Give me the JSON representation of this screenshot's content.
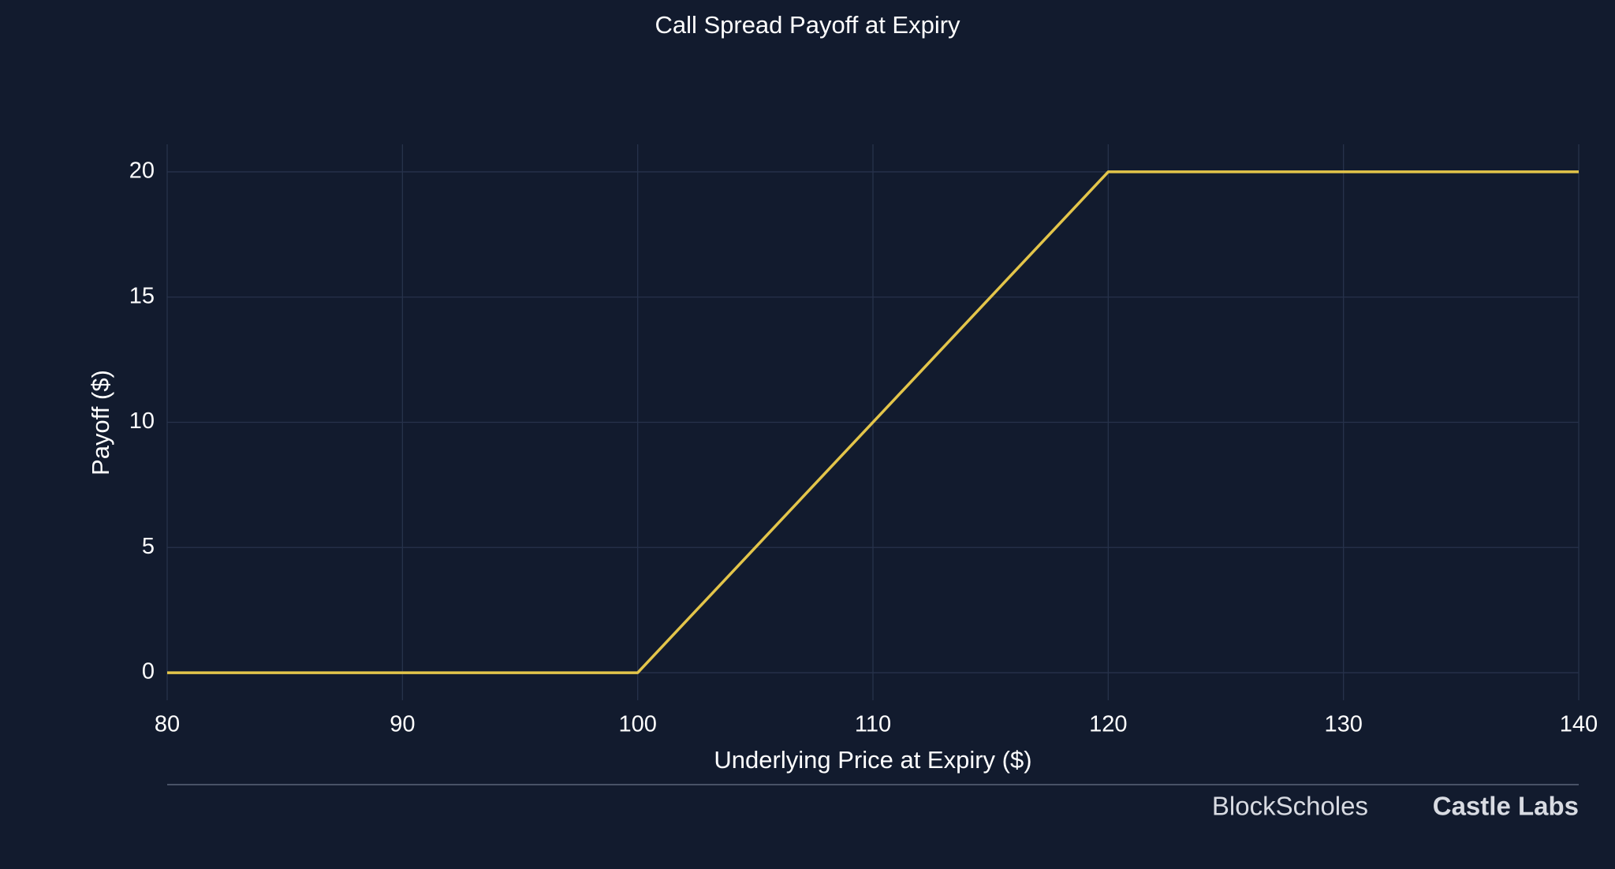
{
  "chart_data": {
    "type": "line",
    "title": "Call Spread Payoff at Expiry",
    "x_label": "Underlying Price at Expiry ($)",
    "y_label": "Payoff ($)",
    "x": [
      80,
      100,
      120,
      140
    ],
    "series": [
      {
        "name": "Payoff",
        "color": "#e3c54a",
        "values": [
          0,
          0,
          20,
          20
        ]
      }
    ],
    "xlim": [
      80,
      140
    ],
    "xticks": [
      80,
      90,
      100,
      110,
      120,
      130,
      140
    ],
    "ylim": [
      -1.1,
      21.1
    ],
    "yticks": [
      0,
      5,
      10,
      15,
      20
    ],
    "grid": true,
    "legend": false,
    "footer_logos": [
      "BlockScholes",
      "Castle Labs"
    ]
  }
}
